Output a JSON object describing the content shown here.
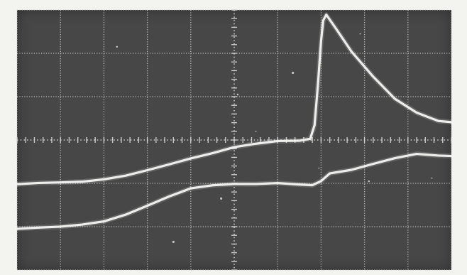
{
  "chart_data": {
    "type": "line",
    "title": "",
    "xlabel": "",
    "ylabel": "",
    "xlim": [
      0,
      10
    ],
    "ylim": [
      -3,
      3
    ],
    "grid": true,
    "grid_divisions": {
      "x": 10,
      "y": 6
    },
    "series": [
      {
        "values": [
          [
            0.0,
            -1.02
          ],
          [
            0.5,
            -0.99
          ],
          [
            1.0,
            -0.98
          ],
          [
            1.5,
            -0.96
          ],
          [
            2.0,
            -0.91
          ],
          [
            2.5,
            -0.82
          ],
          [
            3.0,
            -0.7
          ],
          [
            3.5,
            -0.56
          ],
          [
            4.0,
            -0.43
          ],
          [
            4.5,
            -0.3
          ],
          [
            5.0,
            -0.17
          ],
          [
            5.5,
            -0.08
          ],
          [
            6.0,
            -0.03
          ],
          [
            6.5,
            -0.01
          ],
          [
            6.75,
            0.02
          ],
          [
            6.85,
            0.35
          ],
          [
            6.93,
            1.3
          ],
          [
            7.0,
            2.3
          ],
          [
            7.05,
            2.75
          ],
          [
            7.12,
            2.9
          ],
          [
            7.35,
            2.55
          ],
          [
            7.7,
            2.05
          ],
          [
            8.2,
            1.45
          ],
          [
            8.7,
            0.96
          ],
          [
            9.2,
            0.62
          ],
          [
            9.7,
            0.45
          ],
          [
            10.0,
            0.4
          ]
        ]
      },
      {
        "values": [
          [
            0.0,
            -2.05
          ],
          [
            0.5,
            -2.02
          ],
          [
            1.0,
            -2.0
          ],
          [
            1.5,
            -1.95
          ],
          [
            2.0,
            -1.88
          ],
          [
            2.5,
            -1.72
          ],
          [
            3.0,
            -1.52
          ],
          [
            3.5,
            -1.3
          ],
          [
            4.0,
            -1.12
          ],
          [
            4.5,
            -1.04
          ],
          [
            5.0,
            -1.02
          ],
          [
            5.5,
            -1.01
          ],
          [
            6.0,
            -1.0
          ],
          [
            6.5,
            -1.02
          ],
          [
            6.8,
            -1.05
          ],
          [
            7.0,
            -0.94
          ],
          [
            7.2,
            -0.78
          ],
          [
            7.7,
            -0.68
          ],
          [
            8.2,
            -0.56
          ],
          [
            8.7,
            -0.41
          ],
          [
            9.2,
            -0.33
          ],
          [
            9.7,
            -0.35
          ],
          [
            10.0,
            -0.38
          ]
        ]
      }
    ]
  },
  "style": {
    "screen_color": "#474748",
    "grid_color": "#c9c9c9",
    "trace_color": "#f2f2ef",
    "paper_color": "#f3f3f0"
  }
}
